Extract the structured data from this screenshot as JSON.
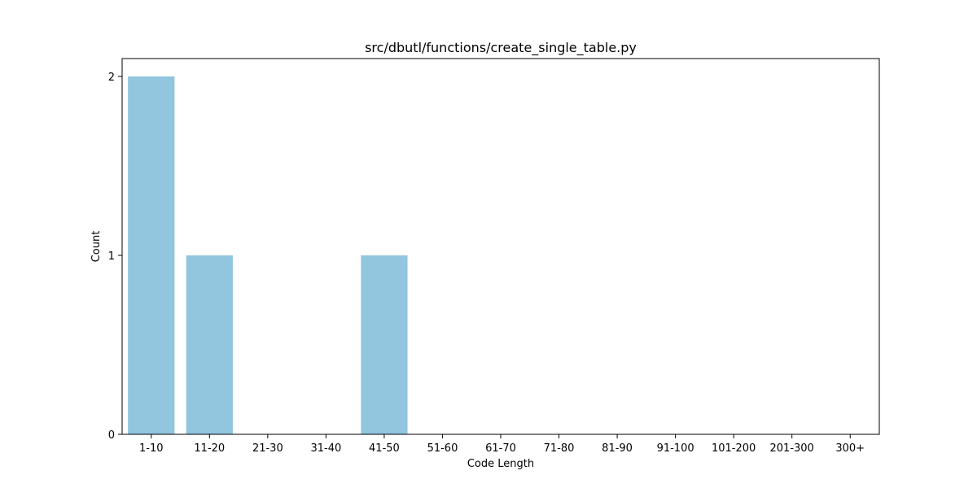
{
  "chart_data": {
    "type": "bar",
    "title": "src/dbutl/functions/create_single_table.py",
    "xlabel": "Code Length",
    "ylabel": "Count",
    "categories": [
      "1-10",
      "11-20",
      "21-30",
      "31-40",
      "41-50",
      "51-60",
      "61-70",
      "71-80",
      "81-90",
      "91-100",
      "101-200",
      "201-300",
      "300+"
    ],
    "values": [
      2,
      1,
      0,
      0,
      1,
      0,
      0,
      0,
      0,
      0,
      0,
      0,
      0
    ],
    "ylim": [
      0,
      2.1
    ],
    "yticks": [
      0,
      1,
      2
    ],
    "bar_color": "#92c5de",
    "grid": false,
    "legend": "none"
  }
}
